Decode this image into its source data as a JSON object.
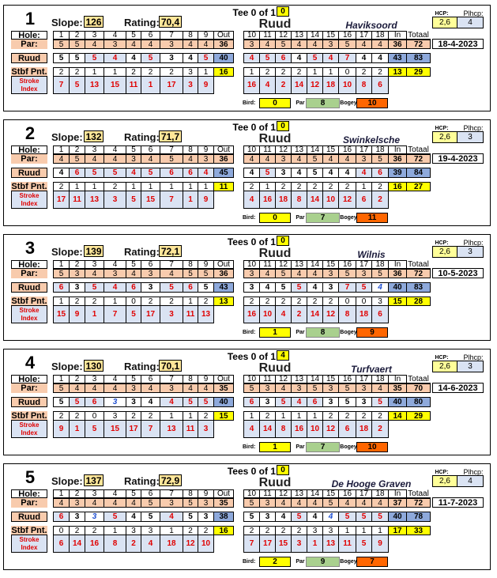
{
  "labels": {
    "hole": "Hole:",
    "par": "Par:",
    "stbf": "Stbf Pnt.",
    "stroke_index": "Stroke Index",
    "out": "Out",
    "in": "In",
    "total": "Totaal",
    "slope": "Slope:",
    "rating": "Rating:",
    "hcp": "HCP:",
    "plhcp": "Plhcp:",
    "birdie": "Bird:",
    "par_count": "Par",
    "bogey": "Bogey"
  },
  "holes": [
    1,
    2,
    3,
    4,
    5,
    6,
    7,
    8,
    9,
    10,
    11,
    12,
    13,
    14,
    15,
    16,
    17,
    18
  ],
  "colors": {
    "par_fill": "#f8cbad",
    "over_par_fill": "#dae3f3",
    "over_par_text": "#e00000",
    "birdie_text": "#1f4fd0",
    "total_fill": "#8ea9db",
    "stbf_total": "#ffff00",
    "slope_fill": "#ffe699",
    "birdie_fill": "#ffff00",
    "par_count_fill": "#a9d08e",
    "bogey_fill": "#ff6600"
  },
  "rounds": [
    {
      "number": "1",
      "slope": "126",
      "rating": "70,4",
      "tee": "Tee 0 of 1",
      "tee_value": "0",
      "player": "Ruud",
      "course": "Haviksoord",
      "hcp": "2,6",
      "plhcp": "4",
      "date": "18-4-2023",
      "par": [
        5,
        5,
        4,
        3,
        4,
        4,
        3,
        4,
        4,
        3,
        4,
        5,
        4,
        4,
        3,
        5,
        4,
        4
      ],
      "par_out": 36,
      "par_in": 36,
      "par_total": 72,
      "scores": [
        5,
        5,
        5,
        4,
        4,
        5,
        3,
        4,
        5,
        4,
        5,
        6,
        4,
        5,
        4,
        7,
        4,
        4
      ],
      "out": 40,
      "in": 43,
      "total": 83,
      "stbf": [
        2,
        2,
        1,
        1,
        2,
        2,
        2,
        3,
        1,
        1,
        2,
        2,
        2,
        1,
        1,
        0,
        2,
        2
      ],
      "stbf_out": 16,
      "stbf_in": 13,
      "stbf_total": 29,
      "stroke_index": [
        7,
        5,
        13,
        15,
        11,
        1,
        17,
        3,
        9,
        16,
        4,
        2,
        14,
        12,
        18,
        10,
        8,
        6
      ],
      "birdies": 0,
      "pars": 8,
      "bogeys": 10
    },
    {
      "number": "2",
      "slope": "132",
      "rating": "71,7",
      "tee": "Tee 0 of 1",
      "tee_value": "0",
      "player": "Ruud",
      "course": "Swinkelsche",
      "hcp": "2,6",
      "plhcp": "3",
      "date": "19-4-2023",
      "par": [
        4,
        5,
        4,
        4,
        3,
        4,
        5,
        4,
        3,
        4,
        4,
        3,
        4,
        5,
        4,
        4,
        3,
        5
      ],
      "par_out": 36,
      "par_in": 36,
      "par_total": 72,
      "scores": [
        4,
        6,
        5,
        5,
        4,
        5,
        6,
        6,
        4,
        4,
        5,
        3,
        4,
        5,
        4,
        4,
        4,
        6
      ],
      "out": 45,
      "in": 39,
      "total": 84,
      "stbf": [
        2,
        1,
        1,
        2,
        1,
        1,
        1,
        1,
        1,
        2,
        1,
        2,
        2,
        2,
        2,
        2,
        1,
        2
      ],
      "stbf_out": 11,
      "stbf_in": 16,
      "stbf_total": 27,
      "stroke_index": [
        17,
        11,
        13,
        3,
        5,
        15,
        7,
        1,
        9,
        4,
        16,
        18,
        8,
        14,
        10,
        12,
        6,
        2
      ],
      "birdies": 0,
      "pars": 7,
      "bogeys": 11
    },
    {
      "number": "3",
      "slope": "139",
      "rating": "72,1",
      "tee": "Tees 0 of 1",
      "tee_value": "0",
      "player": "Ruud",
      "course": "Wilnis",
      "hcp": "2,6",
      "plhcp": "3",
      "date": "10-5-2023",
      "par": [
        5,
        3,
        4,
        3,
        4,
        3,
        4,
        5,
        5,
        3,
        4,
        5,
        4,
        4,
        3,
        5,
        3,
        5
      ],
      "par_out": 36,
      "par_in": 36,
      "par_total": 72,
      "scores": [
        6,
        3,
        5,
        4,
        6,
        3,
        5,
        6,
        5,
        3,
        4,
        5,
        5,
        4,
        3,
        7,
        5,
        4
      ],
      "out": 43,
      "in": 40,
      "total": 83,
      "stbf": [
        1,
        2,
        2,
        1,
        0,
        2,
        2,
        1,
        2,
        2,
        2,
        2,
        2,
        2,
        2,
        0,
        0,
        3
      ],
      "stbf_out": 13,
      "stbf_in": 15,
      "stbf_total": 28,
      "stroke_index": [
        15,
        9,
        1,
        7,
        5,
        17,
        3,
        11,
        13,
        16,
        10,
        4,
        2,
        14,
        12,
        8,
        18,
        6
      ],
      "birdies": 1,
      "pars": 8,
      "bogeys": 9
    },
    {
      "number": "4",
      "slope": "130",
      "rating": "70,1",
      "tee": "Tees 0 of 1",
      "tee_value": "4",
      "player": "Ruud",
      "course": "Turfvaert",
      "hcp": "2,6",
      "plhcp": "3",
      "date": "14-6-2023",
      "par": [
        5,
        4,
        4,
        4,
        3,
        4,
        3,
        4,
        4,
        5,
        3,
        4,
        3,
        5,
        3,
        5,
        3,
        4
      ],
      "par_out": 35,
      "par_in": 35,
      "par_total": 70,
      "scores": [
        5,
        5,
        6,
        3,
        3,
        4,
        4,
        5,
        5,
        6,
        3,
        5,
        4,
        6,
        3,
        5,
        3,
        5
      ],
      "out": 40,
      "in": 40,
      "total": 80,
      "stbf": [
        2,
        2,
        0,
        3,
        2,
        2,
        1,
        1,
        2,
        1,
        2,
        1,
        1,
        1,
        2,
        2,
        2,
        2
      ],
      "stbf_out": 15,
      "stbf_in": 14,
      "stbf_total": 29,
      "stroke_index": [
        9,
        1,
        5,
        15,
        17,
        7,
        13,
        11,
        3,
        4,
        14,
        8,
        16,
        10,
        12,
        6,
        18,
        2
      ],
      "birdies": 1,
      "pars": 7,
      "bogeys": 10
    },
    {
      "number": "5",
      "slope": "137",
      "rating": "72,9",
      "tee": "Tees 0 of 1",
      "tee_value": "0",
      "player": "Ruud",
      "course": "De Hooge Graven",
      "hcp": "2,6",
      "plhcp": "4",
      "date": "11-7-2023",
      "par": [
        4,
        3,
        4,
        4,
        4,
        5,
        3,
        5,
        3,
        5,
        3,
        4,
        4,
        4,
        5,
        4,
        4,
        4
      ],
      "par_out": 35,
      "par_in": 37,
      "par_total": 72,
      "scores": [
        6,
        3,
        3,
        5,
        4,
        5,
        4,
        5,
        3,
        5,
        3,
        4,
        5,
        4,
        4,
        5,
        5,
        5
      ],
      "out": 38,
      "in": 40,
      "total": 78,
      "stbf": [
        0,
        2,
        2,
        1,
        3,
        3,
        1,
        2,
        2,
        2,
        2,
        2,
        2,
        3,
        3,
        1,
        1,
        1
      ],
      "stbf_out": 16,
      "stbf_in": 17,
      "stbf_total": 33,
      "stroke_index": [
        6,
        14,
        16,
        8,
        2,
        4,
        18,
        12,
        10,
        7,
        17,
        15,
        3,
        1,
        13,
        11,
        5,
        9
      ],
      "birdies": 2,
      "pars": 9,
      "bogeys": 7
    }
  ]
}
